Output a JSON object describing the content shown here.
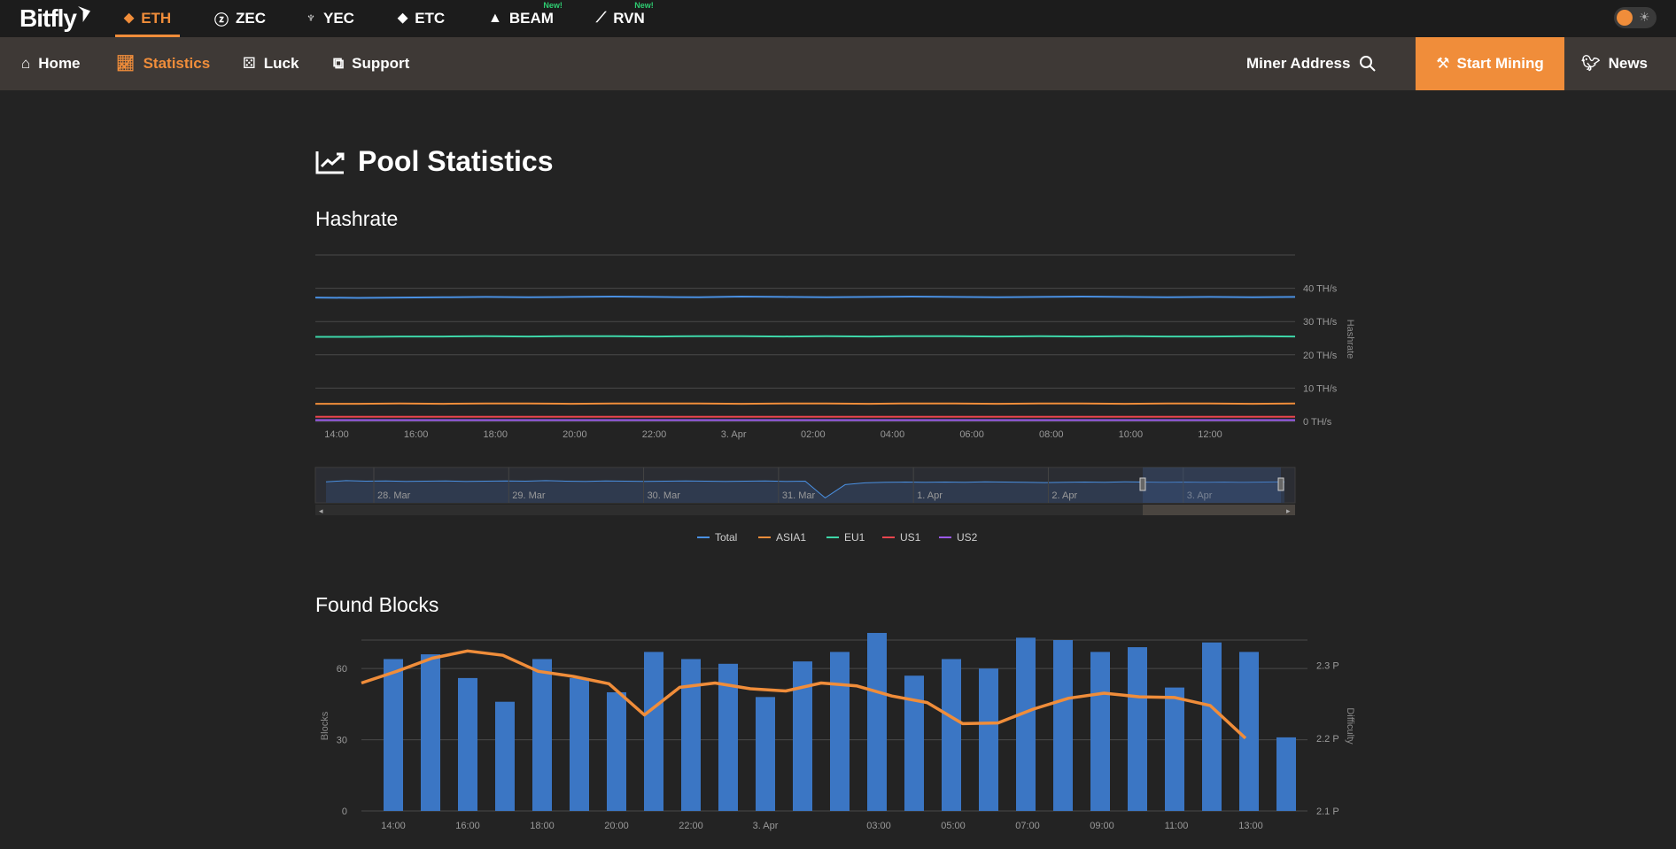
{
  "coins": [
    {
      "label": "ETH",
      "icon": "ethereum-icon",
      "active": true,
      "new": ""
    },
    {
      "label": "ZEC",
      "icon": "zcash-icon",
      "active": false,
      "new": ""
    },
    {
      "label": "YEC",
      "icon": "ycash-icon",
      "active": false,
      "new": ""
    },
    {
      "label": "ETC",
      "icon": "ethereum-classic-icon",
      "active": false,
      "new": ""
    },
    {
      "label": "BEAM",
      "icon": "beam-icon",
      "active": false,
      "new": "New!"
    },
    {
      "label": "RVN",
      "icon": "ravencoin-icon",
      "active": false,
      "new": "New!"
    }
  ],
  "logo": "Bitfly",
  "nav": {
    "home": "Home",
    "statistics": "Statistics",
    "luck": "Luck",
    "support": "Support",
    "miner_address": "Miner Address",
    "start_mining": "Start Mining",
    "news": "News"
  },
  "page": {
    "title": "Pool Statistics",
    "hashrate_title": "Hashrate",
    "blocks_title": "Found Blocks"
  },
  "colors": {
    "accent": "#f08d3a",
    "total": "#4a90e2",
    "asia1": "#f08d3a",
    "eu1": "#3ed6a8",
    "us1": "#e8454d",
    "us2": "#9b59f0",
    "bars": "#3b76c4"
  },
  "chart_data": [
    {
      "type": "line",
      "title": "Hashrate",
      "ylabel": "Hashrate",
      "ylim": [
        0,
        50
      ],
      "y_ticks": [
        "0 TH/s",
        "10 TH/s",
        "20 TH/s",
        "30 TH/s",
        "40 TH/s"
      ],
      "x_ticks": [
        "14:00",
        "16:00",
        "18:00",
        "20:00",
        "22:00",
        "3. Apr",
        "02:00",
        "04:00",
        "06:00",
        "08:00",
        "10:00",
        "12:00"
      ],
      "series": [
        {
          "name": "Total",
          "values": [
            37.2,
            37.1,
            37.2,
            37.3,
            37.4,
            37.3,
            37.4,
            37.5,
            37.4,
            37.3,
            37.5,
            37.4,
            37.3,
            37.4,
            37.5,
            37.4,
            37.3,
            37.4,
            37.5,
            37.4,
            37.3,
            37.4,
            37.3,
            37.4
          ]
        },
        {
          "name": "ASIA1",
          "values": [
            5.3,
            5.3,
            5.4,
            5.3,
            5.4,
            5.4,
            5.3,
            5.4,
            5.4,
            5.4,
            5.3,
            5.4,
            5.4,
            5.3,
            5.4,
            5.4,
            5.3,
            5.4,
            5.4,
            5.3,
            5.4,
            5.4,
            5.3,
            5.4
          ]
        },
        {
          "name": "EU1",
          "values": [
            25.4,
            25.4,
            25.5,
            25.5,
            25.6,
            25.5,
            25.6,
            25.6,
            25.5,
            25.6,
            25.6,
            25.5,
            25.6,
            25.5,
            25.6,
            25.6,
            25.5,
            25.6,
            25.5,
            25.6,
            25.5,
            25.5,
            25.6,
            25.5
          ]
        },
        {
          "name": "US1",
          "values": [
            1.4,
            1.4,
            1.4,
            1.4,
            1.4,
            1.4,
            1.4,
            1.4,
            1.4,
            1.4,
            1.4,
            1.4,
            1.4,
            1.4,
            1.4,
            1.4,
            1.4,
            1.4,
            1.4,
            1.4,
            1.4,
            1.4,
            1.4,
            1.4
          ]
        },
        {
          "name": "US2",
          "values": [
            0.4,
            0.4,
            0.4,
            0.4,
            0.4,
            0.4,
            0.4,
            0.4,
            0.4,
            0.4,
            0.4,
            0.4,
            0.4,
            0.4,
            0.4,
            0.4,
            0.4,
            0.4,
            0.4,
            0.4,
            0.4,
            0.4,
            0.4,
            0.4
          ]
        }
      ],
      "navigator": {
        "labels": [
          "28. Mar",
          "29. Mar",
          "30. Mar",
          "31. Mar",
          "1. Apr",
          "2. Apr",
          "3. Apr"
        ],
        "values": [
          0.62,
          0.66,
          0.64,
          0.65,
          0.63,
          0.64,
          0.65,
          0.63,
          0.64,
          0.65,
          0.64,
          0.66,
          0.64,
          0.63,
          0.65,
          0.64,
          0.63,
          0.64,
          0.65,
          0.64,
          0.63,
          0.64,
          0.65,
          0.63,
          0.64,
          0.05,
          0.52,
          0.58,
          0.6,
          0.61,
          0.6,
          0.61,
          0.6,
          0.62,
          0.61,
          0.6,
          0.59,
          0.6,
          0.61,
          0.6,
          0.62,
          0.61,
          0.6,
          0.61,
          0.6,
          0.61,
          0.6,
          0.61,
          0.62
        ]
      }
    },
    {
      "type": "bar",
      "title": "Found Blocks",
      "ylabel": "Blocks",
      "y2label": "Difficulty",
      "ylim": [
        0,
        72
      ],
      "y_ticks": [
        "0",
        "30",
        "60"
      ],
      "y2_ticks": [
        "2.1 P",
        "2.2 P",
        "2.3 P"
      ],
      "y2lim": [
        2.1,
        2.335
      ],
      "x_ticks": [
        "14:00",
        "16:00",
        "18:00",
        "20:00",
        "22:00",
        "3. Apr",
        "03:00",
        "05:00",
        "07:00",
        "09:00",
        "11:00",
        "13:00"
      ],
      "series": [
        {
          "name": "Blocks",
          "values": [
            64,
            66,
            56,
            46,
            64,
            56,
            50,
            67,
            64,
            62,
            48,
            63,
            67,
            75,
            57,
            64,
            60,
            73,
            72,
            67,
            69,
            52,
            71,
            67,
            31
          ]
        },
        {
          "name": "Difficulty",
          "values": [
            2.276,
            2.292,
            2.31,
            2.32,
            2.314,
            2.292,
            2.285,
            2.275,
            2.232,
            2.27,
            2.276,
            2.268,
            2.265,
            2.276,
            2.272,
            2.258,
            2.249,
            2.22,
            2.221,
            2.24,
            2.255,
            2.262,
            2.257,
            2.256,
            2.245,
            2.2
          ]
        }
      ]
    }
  ]
}
